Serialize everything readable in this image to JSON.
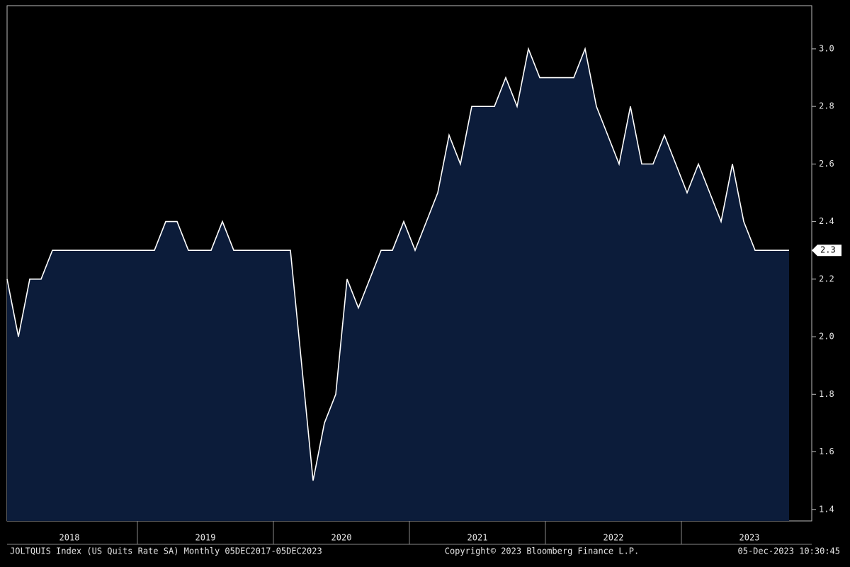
{
  "chart_data": {
    "type": "area",
    "series": [
      {
        "name": "JOLTQUIS Index",
        "color": "#ffffff",
        "fill": "#0c1c3a",
        "values": [
          2.2,
          2.0,
          2.2,
          2.2,
          2.3,
          2.3,
          2.3,
          2.3,
          2.3,
          2.3,
          2.3,
          2.3,
          2.3,
          2.3,
          2.4,
          2.4,
          2.3,
          2.3,
          2.3,
          2.4,
          2.3,
          2.3,
          2.3,
          2.3,
          2.3,
          2.3,
          1.9,
          1.5,
          1.7,
          1.8,
          2.2,
          2.1,
          2.2,
          2.3,
          2.3,
          2.4,
          2.3,
          2.4,
          2.5,
          2.7,
          2.6,
          2.8,
          2.8,
          2.8,
          2.9,
          2.8,
          3.0,
          2.9,
          2.9,
          2.9,
          2.9,
          3.0,
          2.8,
          2.7,
          2.6,
          2.8,
          2.6,
          2.6,
          2.7,
          2.6,
          2.5,
          2.6,
          2.5,
          2.4,
          2.6,
          2.4,
          2.3,
          2.3,
          2.3,
          2.3
        ]
      }
    ],
    "year_labels": [
      "2018",
      "2019",
      "2020",
      "2021",
      "2022",
      "2023"
    ],
    "ylim": [
      1.36,
      3.15
    ],
    "yticks": [
      1.4,
      1.6,
      1.8,
      {
        "value": 2,
        "label": "2.0"
      },
      2.2,
      2.4,
      2.6,
      2.8,
      {
        "value": 3,
        "label": "3.0"
      }
    ],
    "last_value": 2.3,
    "footer_left": "JOLTQUIS Index (US Quits Rate SA)  Monthly 05DEC2017-05DEC2023",
    "footer_center": "Copyright© 2023 Bloomberg Finance L.P.",
    "footer_right": "05-Dec-2023 10:30:45"
  }
}
